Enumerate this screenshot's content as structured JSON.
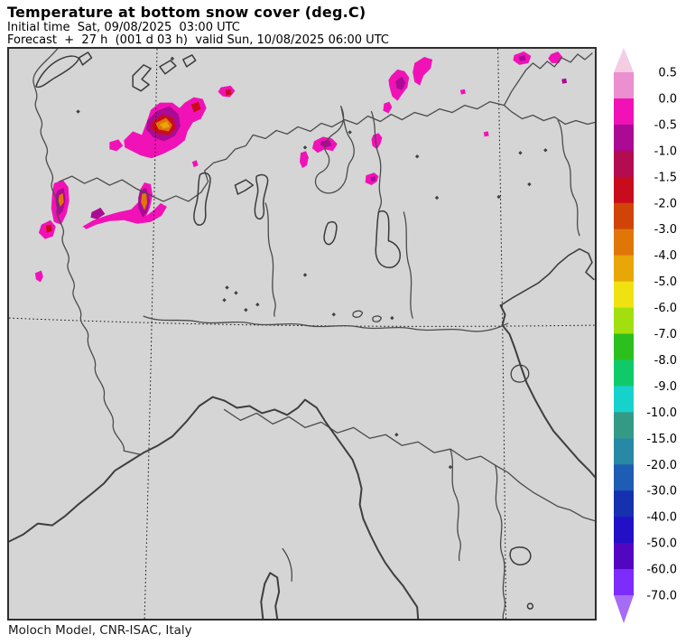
{
  "header": {
    "title": "Temperature at bottom snow cover (deg.C)",
    "init_line": "Initial time  Sat, 09/08/2025  03:00 UTC",
    "forecast_line": "Forecast  +  27 h  (001 d 03 h)  valid Sun, 10/08/2025 06:00 UTC"
  },
  "footer": {
    "credit": "Moloch Model, CNR-ISAC, Italy"
  },
  "chart_data": {
    "type": "heatmap",
    "variable": "Temperature at bottom snow cover",
    "units": "deg.C",
    "model": "Moloch Model, CNR-ISAC, Italy",
    "legend_position": "right",
    "colorbar": {
      "tick_labels": [
        "0.5",
        "0.0",
        "-0.5",
        "-1.0",
        "-1.5",
        "-2.0",
        "-3.0",
        "-4.0",
        "-5.0",
        "-6.0",
        "-7.0",
        "-8.0",
        "-9.0",
        "-10.0",
        "-15.0",
        "-20.0",
        "-30.0",
        "-40.0",
        "-50.0",
        "-60.0",
        "-70.0"
      ],
      "segment_colors": [
        "#eb8fd0",
        "#f112b7",
        "#ab0b94",
        "#b40c51",
        "#c90c1d",
        "#d14408",
        "#e07607",
        "#e9a607",
        "#f0e211",
        "#a2df0e",
        "#2cc01e",
        "#10ca6a",
        "#17d2cc",
        "#349a86",
        "#2889a6",
        "#1f5cb4",
        "#1531ae",
        "#2310c6",
        "#5306c2",
        "#7d2cfc"
      ],
      "over_color": "#f4cce4",
      "under_color": "#a66cf5"
    },
    "patch_groups": [
      {
        "range": "0.0 to -0.5",
        "color": "#f112b7",
        "polygons": [
          "128,102 138,92 148,96 154,80 158,68 168,60 182,60 190,66 196,60 206,54 216,56 220,66 214,78 205,82 199,92 196,102 186,110 172,117 159,122 147,119 137,114 129,110",
          "236,43 247,41 252,47 246,54 238,53 233,48",
          "50,150 60,146 66,154 67,170 64,184 58,196 50,193 47,178 48,162",
          "36,196 46,191 52,198 49,209 40,212 33,205",
          "82,198 94,191 108,186 122,182 136,179 144,171 146,157 151,149 158,151 160,163 157,177 153,186 161,180 169,172 176,176 170,186 158,193 143,195 128,191 112,192 97,196 86,201",
          "112,104 122,101 127,108 120,114 112,112",
          "204,126 209,124 211,130 206,132",
          "426,30 433,23 441,25 446,32 444,43 438,51 433,58 427,53 424,42 423,35",
          "452,16 463,9 472,12 470,22 462,30 458,41 452,37 450,26",
          "563,7 574,3 582,8 579,16 569,18 562,13",
          "604,6 612,3 617,9 613,16 605,16 601,11",
          "503,46 508,45 509,50 504,51",
          "398,141 407,138 412,142 410,148 404,152 397,149",
          "340,103 350,98 360,100 366,106 361,114 352,112 344,116 338,111",
          "325,116 331,114 334,121 332,130 327,133 324,126",
          "418,61 424,59 427,65 423,72 417,69",
          "406,96 412,94 416,99 414,106 410,112 405,108 404,101",
          "29,250 36,247 38,254 35,260 30,257",
          "529,93 534,92 535,97 530,98"
        ]
      },
      {
        "range": "-0.5 to -1.0",
        "color": "#ab0b94",
        "polygons": [
          "154,80 165,69 179,64 189,73 191,86 185,97 173,103 161,99 153,90",
          "54,158 61,155 63,168 60,181 55,186 52,172 52,163",
          "146,158 153,155 157,168 154,182 149,188 144,177 144,166",
          "92,182 102,177 107,184 98,190 91,188",
          "431,36 438,31 442,38 438,46 432,44",
          "568,9 575,7 576,13 570,14",
          "403,143 408,142 409,147 404,148",
          "616,34 621,33 622,38 617,39",
          "348,103 357,102 360,108 352,110 347,107"
        ]
      },
      {
        "range": "-1.5 to -2.0",
        "color": "#c90c1d",
        "polygons": [
          "159,82 171,73 183,77 186,88 179,96 167,95 158,89",
          "203,62 211,59 214,67 206,71",
          "241,46 247,45 248,51 242,52",
          "41,197 47,196 48,203 42,205"
        ]
      },
      {
        "range": "-3.0 to -4.0",
        "color": "#e07607",
        "polygons": [
          "163,83 175,77 182,85 178,92 167,90",
          "56,163 60,161 61,171 57,176 55,169",
          "148,162 153,160 154,172 151,180 147,171"
        ]
      },
      {
        "range": "-4.0 to -5.0",
        "color": "#e9a607",
        "polygons": [
          "168,84 176,81 179,87 172,89"
        ]
      }
    ]
  }
}
